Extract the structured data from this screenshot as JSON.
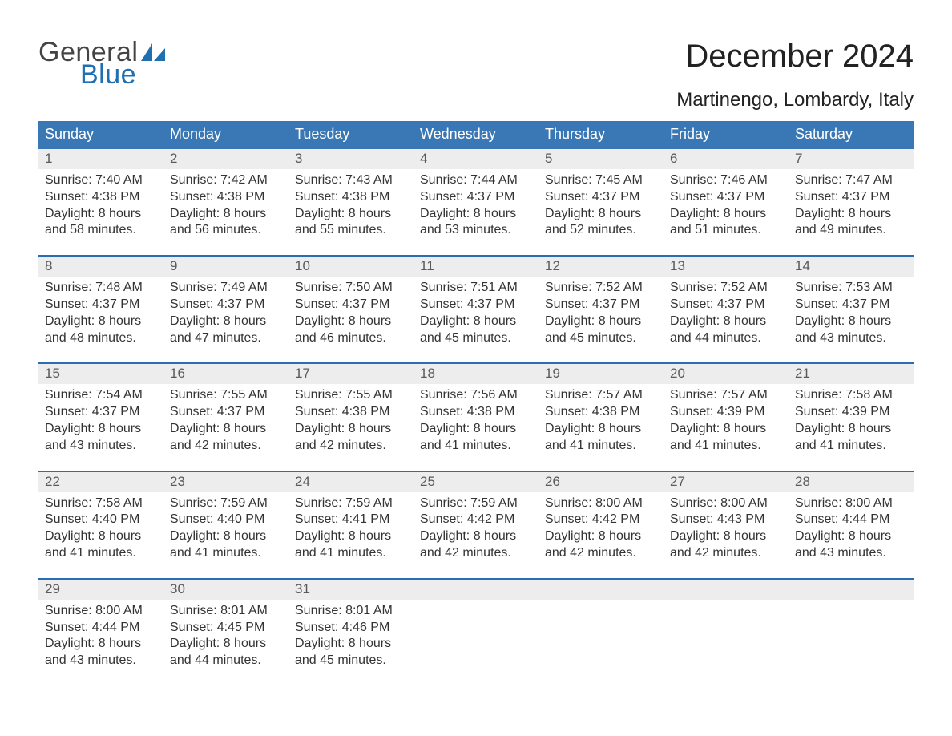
{
  "brand": {
    "word1": "General",
    "word2": "Blue",
    "accent_color": "#1f6fb2"
  },
  "title": "December 2024",
  "location": "Martinengo, Lombardy, Italy",
  "colors": {
    "header_bg": "#3a78b5",
    "header_text": "#ffffff",
    "daynum_bg": "#ededed",
    "daynum_text": "#5a5a5a",
    "week_rule": "#2a6db0",
    "body_text": "#333333",
    "page_bg": "#ffffff"
  },
  "typography": {
    "title_fontsize_pt": 30,
    "location_fontsize_pt": 18,
    "dow_fontsize_pt": 13,
    "daynum_fontsize_pt": 13,
    "cell_fontsize_pt": 12,
    "font_family": "Arial"
  },
  "days_of_week": [
    "Sunday",
    "Monday",
    "Tuesday",
    "Wednesday",
    "Thursday",
    "Friday",
    "Saturday"
  ],
  "label_sunrise": "Sunrise:",
  "label_sunset": "Sunset:",
  "label_daylight": "Daylight:",
  "weeks": [
    [
      {
        "n": "1",
        "sunrise": "7:40 AM",
        "sunset": "4:38 PM",
        "daylight": "8 hours and 58 minutes."
      },
      {
        "n": "2",
        "sunrise": "7:42 AM",
        "sunset": "4:38 PM",
        "daylight": "8 hours and 56 minutes."
      },
      {
        "n": "3",
        "sunrise": "7:43 AM",
        "sunset": "4:38 PM",
        "daylight": "8 hours and 55 minutes."
      },
      {
        "n": "4",
        "sunrise": "7:44 AM",
        "sunset": "4:37 PM",
        "daylight": "8 hours and 53 minutes."
      },
      {
        "n": "5",
        "sunrise": "7:45 AM",
        "sunset": "4:37 PM",
        "daylight": "8 hours and 52 minutes."
      },
      {
        "n": "6",
        "sunrise": "7:46 AM",
        "sunset": "4:37 PM",
        "daylight": "8 hours and 51 minutes."
      },
      {
        "n": "7",
        "sunrise": "7:47 AM",
        "sunset": "4:37 PM",
        "daylight": "8 hours and 49 minutes."
      }
    ],
    [
      {
        "n": "8",
        "sunrise": "7:48 AM",
        "sunset": "4:37 PM",
        "daylight": "8 hours and 48 minutes."
      },
      {
        "n": "9",
        "sunrise": "7:49 AM",
        "sunset": "4:37 PM",
        "daylight": "8 hours and 47 minutes."
      },
      {
        "n": "10",
        "sunrise": "7:50 AM",
        "sunset": "4:37 PM",
        "daylight": "8 hours and 46 minutes."
      },
      {
        "n": "11",
        "sunrise": "7:51 AM",
        "sunset": "4:37 PM",
        "daylight": "8 hours and 45 minutes."
      },
      {
        "n": "12",
        "sunrise": "7:52 AM",
        "sunset": "4:37 PM",
        "daylight": "8 hours and 45 minutes."
      },
      {
        "n": "13",
        "sunrise": "7:52 AM",
        "sunset": "4:37 PM",
        "daylight": "8 hours and 44 minutes."
      },
      {
        "n": "14",
        "sunrise": "7:53 AM",
        "sunset": "4:37 PM",
        "daylight": "8 hours and 43 minutes."
      }
    ],
    [
      {
        "n": "15",
        "sunrise": "7:54 AM",
        "sunset": "4:37 PM",
        "daylight": "8 hours and 43 minutes."
      },
      {
        "n": "16",
        "sunrise": "7:55 AM",
        "sunset": "4:37 PM",
        "daylight": "8 hours and 42 minutes."
      },
      {
        "n": "17",
        "sunrise": "7:55 AM",
        "sunset": "4:38 PM",
        "daylight": "8 hours and 42 minutes."
      },
      {
        "n": "18",
        "sunrise": "7:56 AM",
        "sunset": "4:38 PM",
        "daylight": "8 hours and 41 minutes."
      },
      {
        "n": "19",
        "sunrise": "7:57 AM",
        "sunset": "4:38 PM",
        "daylight": "8 hours and 41 minutes."
      },
      {
        "n": "20",
        "sunrise": "7:57 AM",
        "sunset": "4:39 PM",
        "daylight": "8 hours and 41 minutes."
      },
      {
        "n": "21",
        "sunrise": "7:58 AM",
        "sunset": "4:39 PM",
        "daylight": "8 hours and 41 minutes."
      }
    ],
    [
      {
        "n": "22",
        "sunrise": "7:58 AM",
        "sunset": "4:40 PM",
        "daylight": "8 hours and 41 minutes."
      },
      {
        "n": "23",
        "sunrise": "7:59 AM",
        "sunset": "4:40 PM",
        "daylight": "8 hours and 41 minutes."
      },
      {
        "n": "24",
        "sunrise": "7:59 AM",
        "sunset": "4:41 PM",
        "daylight": "8 hours and 41 minutes."
      },
      {
        "n": "25",
        "sunrise": "7:59 AM",
        "sunset": "4:42 PM",
        "daylight": "8 hours and 42 minutes."
      },
      {
        "n": "26",
        "sunrise": "8:00 AM",
        "sunset": "4:42 PM",
        "daylight": "8 hours and 42 minutes."
      },
      {
        "n": "27",
        "sunrise": "8:00 AM",
        "sunset": "4:43 PM",
        "daylight": "8 hours and 42 minutes."
      },
      {
        "n": "28",
        "sunrise": "8:00 AM",
        "sunset": "4:44 PM",
        "daylight": "8 hours and 43 minutes."
      }
    ],
    [
      {
        "n": "29",
        "sunrise": "8:00 AM",
        "sunset": "4:44 PM",
        "daylight": "8 hours and 43 minutes."
      },
      {
        "n": "30",
        "sunrise": "8:01 AM",
        "sunset": "4:45 PM",
        "daylight": "8 hours and 44 minutes."
      },
      {
        "n": "31",
        "sunrise": "8:01 AM",
        "sunset": "4:46 PM",
        "daylight": "8 hours and 45 minutes."
      },
      null,
      null,
      null,
      null
    ]
  ]
}
